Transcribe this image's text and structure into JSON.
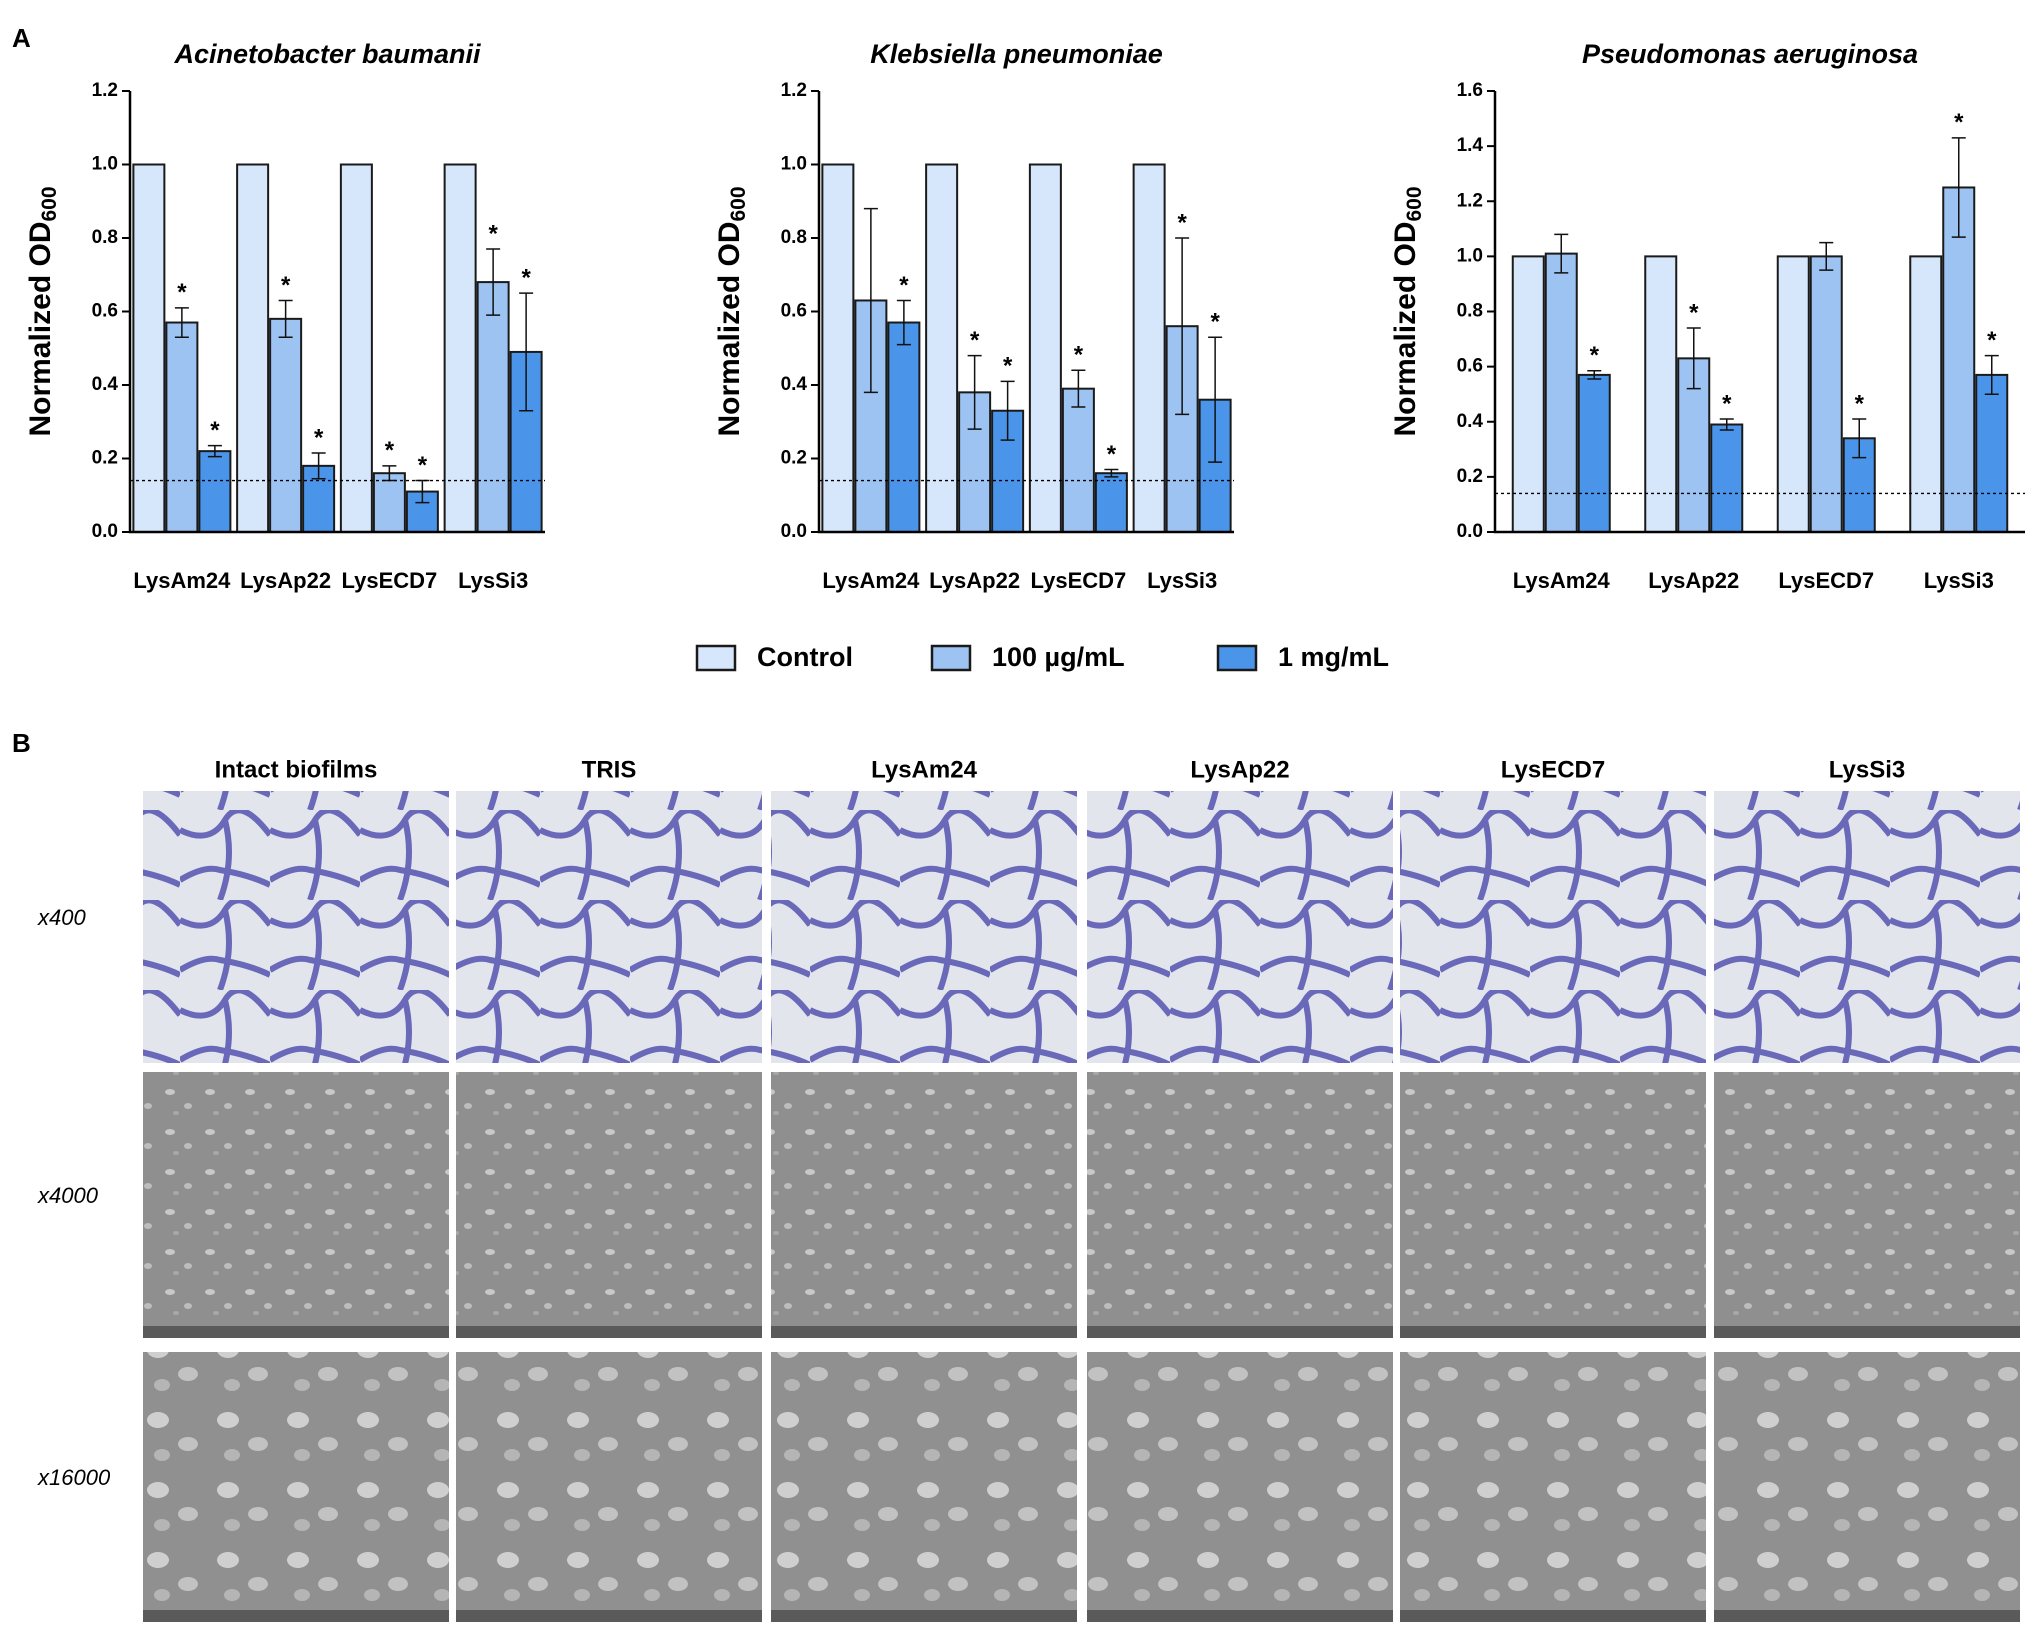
{
  "panels": [
    "A",
    "B"
  ],
  "chart_data": [
    {
      "type": "bar",
      "title": "Acinetobacter baumanii",
      "y_label": "Normalized OD",
      "y_label_sub": "600",
      "categories": [
        "LysAm24",
        "LysAp22",
        "LysECD7",
        "LysSi3"
      ],
      "ylim": [
        0,
        1.2
      ],
      "yticks": [
        {
          "value": 0,
          "label": "0.0"
        },
        0.2,
        0.4,
        0.6,
        0.8,
        {
          "value": 1,
          "label": "1.0"
        },
        1.2
      ],
      "reference_line": 0.14,
      "series": [
        {
          "name": "Control",
          "color": "#d6e6fb",
          "values": [
            1,
            1,
            1,
            1
          ]
        },
        {
          "name": "100 µg/mL",
          "color": "#9cc3f2",
          "values": [
            0.57,
            0.58,
            0.16,
            0.68
          ],
          "errors": [
            0.04,
            0.05,
            0.02,
            0.09
          ],
          "marks": [
            "*",
            "*",
            "*",
            "*"
          ]
        },
        {
          "name": "1 mg/mL",
          "color": "#4a95ea",
          "values": [
            0.22,
            0.18,
            0.11,
            0.49
          ],
          "errors": [
            0.015,
            0.035,
            0.03,
            0.16
          ],
          "marks": [
            "*",
            "*",
            "*",
            "*"
          ]
        }
      ]
    },
    {
      "type": "bar",
      "title": "Klebsiella pneumoniae",
      "y_label": "Normalized OD",
      "y_label_sub": "600",
      "categories": [
        "LysAm24",
        "LysAp22",
        "LysECD7",
        "LysSi3"
      ],
      "ylim": [
        0,
        1.2
      ],
      "yticks": [
        {
          "value": 0,
          "label": "0.0"
        },
        0.2,
        0.4,
        0.6,
        0.8,
        {
          "value": 1,
          "label": "1.0"
        },
        1.2
      ],
      "reference_line": 0.14,
      "series": [
        {
          "name": "Control",
          "color": "#d6e6fb",
          "values": [
            1,
            1,
            1,
            1
          ]
        },
        {
          "name": "100 µg/mL",
          "color": "#9cc3f2",
          "values": [
            0.63,
            0.38,
            0.39,
            0.56
          ],
          "errors": [
            0.25,
            0.1,
            0.05,
            0.24
          ],
          "marks": [
            null,
            "*",
            "*",
            "*"
          ]
        },
        {
          "name": "1 mg/mL",
          "color": "#4a95ea",
          "values": [
            0.57,
            0.33,
            0.16,
            0.36
          ],
          "errors": [
            0.06,
            0.08,
            0.01,
            0.17
          ],
          "marks": [
            "*",
            "*",
            "*",
            "*"
          ]
        }
      ]
    },
    {
      "type": "bar",
      "title": "Pseudomonas aeruginosa",
      "y_label": "Normalized OD",
      "y_label_sub": "600",
      "categories": [
        "LysAm24",
        "LysAp22",
        "LysECD7",
        "LysSi3"
      ],
      "ylim": [
        0,
        1.6
      ],
      "yticks": [
        {
          "value": 0,
          "label": "0.0"
        },
        0.2,
        0.4,
        0.6,
        0.8,
        {
          "value": 1,
          "label": "1.0"
        },
        1.2,
        1.4,
        1.6
      ],
      "reference_line": 0.14,
      "series": [
        {
          "name": "Control",
          "color": "#d6e6fb",
          "values": [
            1,
            1,
            1,
            1
          ]
        },
        {
          "name": "100 µg/mL",
          "color": "#9cc3f2",
          "values": [
            1.01,
            0.63,
            1.0,
            1.25
          ],
          "errors": [
            0.07,
            0.11,
            0.05,
            0.18
          ],
          "marks": [
            null,
            "*",
            null,
            "*"
          ]
        },
        {
          "name": "1 mg/mL",
          "color": "#4a95ea",
          "values": [
            0.57,
            0.39,
            0.34,
            0.57
          ],
          "errors": [
            0.015,
            0.02,
            0.07,
            0.07
          ],
          "marks": [
            "*",
            "*",
            "*",
            "*"
          ]
        }
      ]
    }
  ],
  "micrographs": {
    "columns": [
      "Intact biofilms",
      "TRIS",
      "LysAm24",
      "LysAp22",
      "LysECD7",
      "LysSi3"
    ],
    "rows": [
      "x400",
      "x4000",
      "x16000"
    ]
  }
}
